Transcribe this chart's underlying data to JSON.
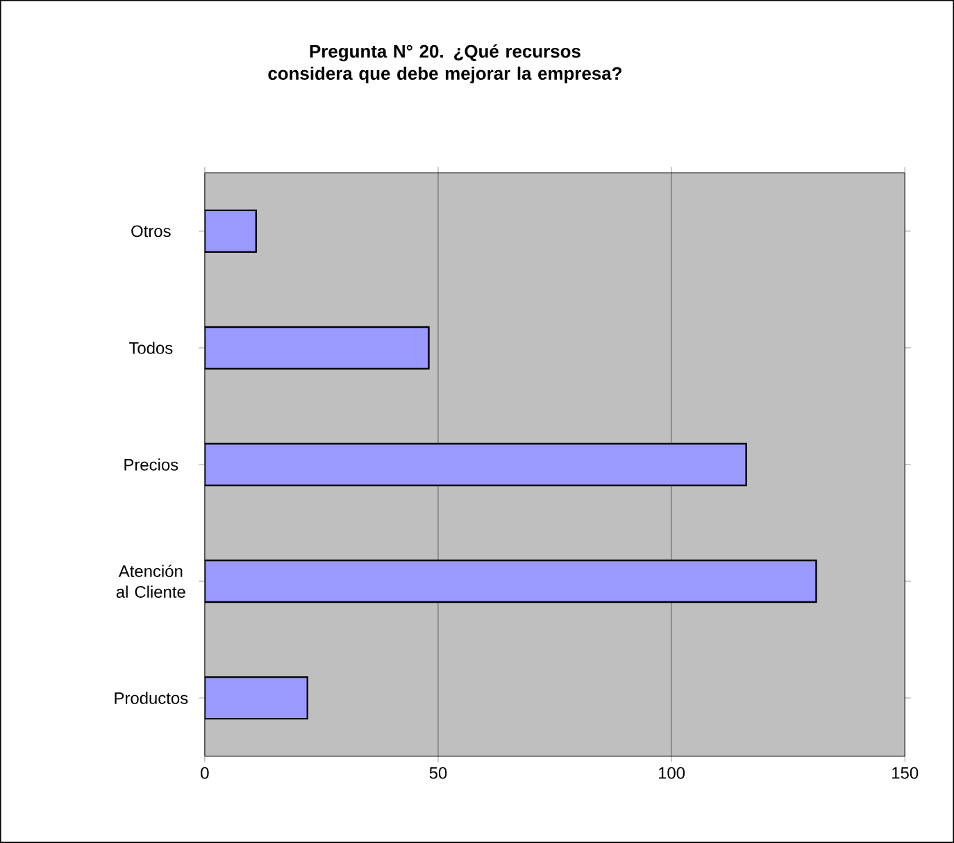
{
  "chart_data": {
    "type": "bar",
    "orientation": "horizontal",
    "title": "Pregunta N° 20. ¿Qué recursos considera que debe mejorar la empresa?",
    "categories": [
      "Otros",
      "Todos",
      "Precios",
      "Atención al Cliente",
      "Productos"
    ],
    "values": [
      11,
      48,
      116,
      131,
      22
    ],
    "color": "#9999ff",
    "xlim": [
      0,
      150
    ],
    "xticks": [
      0,
      50,
      100,
      150
    ],
    "grid": "x"
  }
}
